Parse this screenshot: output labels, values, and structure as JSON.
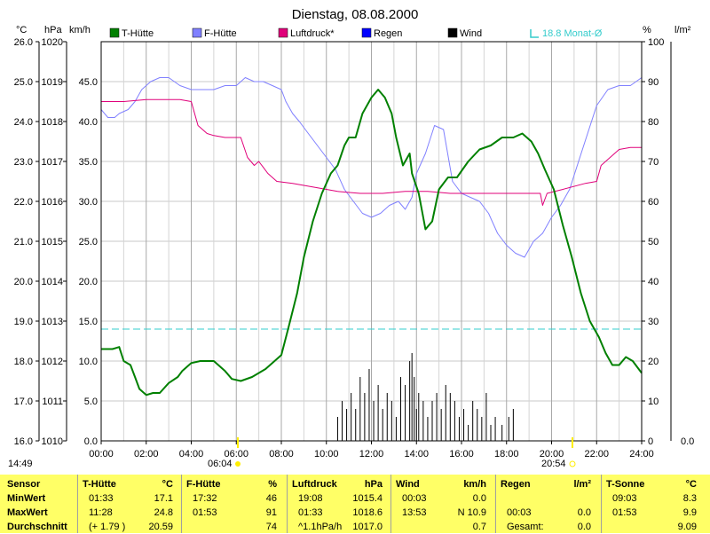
{
  "chart_data": {
    "type": "line",
    "title": "Dienstag, 08.08.2000",
    "time_label": "14:49",
    "x_ticks": [
      "00:00",
      "02:00",
      "04:00",
      "06:00",
      "08:00",
      "10:00",
      "12:00",
      "14:00",
      "16:00",
      "18:00",
      "20:00",
      "22:00",
      "24:00"
    ],
    "x_range": [
      0,
      24
    ],
    "sunrise": "06:04",
    "sunset": "20:54",
    "axes": {
      "temp": {
        "unit": "°C",
        "range": [
          16,
          26
        ],
        "ticks": [
          "26.0",
          "25.0",
          "24.0",
          "23.0",
          "22.0",
          "21.0",
          "20.0",
          "19.0",
          "18.0",
          "17.0",
          "16.0"
        ]
      },
      "pressure": {
        "unit": "hPa",
        "range": [
          1010,
          1020
        ],
        "ticks": [
          "1020",
          "1019",
          "1018",
          "1017",
          "1016",
          "1015",
          "1014",
          "1013",
          "1012",
          "1011",
          "1010"
        ]
      },
      "wind": {
        "unit": "km/h",
        "range": [
          0,
          50
        ],
        "ticks": [
          "45.0",
          "40.0",
          "35.0",
          "30.0",
          "25.0",
          "20.0",
          "15.0",
          "10.0",
          "5.0",
          "0.0"
        ]
      },
      "humidity": {
        "unit": "%",
        "range": [
          0,
          100
        ],
        "ticks": [
          "100",
          "90",
          "80",
          "70",
          "60",
          "50",
          "40",
          "30",
          "20",
          "10",
          "0"
        ]
      },
      "rain": {
        "unit": "l/m²",
        "ticks": [
          "0.0"
        ]
      }
    },
    "legend": [
      {
        "name": "T-Hütte",
        "color": "#008000"
      },
      {
        "name": "F-Hütte",
        "color": "#8080ff"
      },
      {
        "name": "Luftdruck*",
        "color": "#e0007a"
      },
      {
        "name": "Regen",
        "color": "#0000ff"
      },
      {
        "name": "Wind",
        "color": "#000000"
      },
      {
        "name": "18.8 Monat-Ø",
        "color": "#33cccc"
      }
    ],
    "monthly_avg_temp": 18.8,
    "series": [
      {
        "name": "T-Hütte",
        "axis": "temp",
        "x": [
          0,
          0.5,
          0.8,
          1.0,
          1.3,
          1.5,
          1.7,
          2.0,
          2.3,
          2.6,
          3.0,
          3.4,
          3.6,
          4.0,
          4.4,
          5.0,
          5.5,
          5.8,
          6.2,
          6.7,
          7.0,
          7.3,
          7.7,
          8.0,
          8.3,
          8.7,
          9.0,
          9.4,
          9.8,
          10.2,
          10.5,
          10.8,
          11.0,
          11.3,
          11.6,
          12.0,
          12.3,
          12.6,
          12.9,
          13.1,
          13.4,
          13.7,
          13.8,
          14.1,
          14.4,
          14.7,
          15.0,
          15.4,
          15.8,
          16.3,
          16.8,
          17.3,
          17.8,
          18.3,
          18.7,
          19.1,
          19.4,
          19.7,
          20.1,
          20.5,
          20.9,
          21.3,
          21.7,
          22.1,
          22.4,
          22.7,
          23.0,
          23.3,
          23.6,
          24.0
        ],
        "values": [
          18.3,
          18.3,
          18.35,
          18.0,
          17.9,
          17.6,
          17.3,
          17.15,
          17.2,
          17.2,
          17.45,
          17.6,
          17.75,
          17.95,
          18.0,
          18.0,
          17.75,
          17.55,
          17.5,
          17.6,
          17.7,
          17.8,
          18.0,
          18.15,
          18.8,
          19.7,
          20.6,
          21.5,
          22.2,
          22.7,
          22.9,
          23.4,
          23.6,
          23.6,
          24.2,
          24.6,
          24.8,
          24.6,
          24.2,
          23.6,
          22.9,
          23.2,
          22.7,
          22.2,
          21.3,
          21.5,
          22.3,
          22.6,
          22.6,
          23.0,
          23.3,
          23.4,
          23.6,
          23.6,
          23.7,
          23.5,
          23.2,
          22.8,
          22.3,
          21.4,
          20.6,
          19.7,
          19.0,
          18.6,
          18.2,
          17.9,
          17.9,
          18.1,
          18.0,
          17.7
        ]
      },
      {
        "name": "F-Hütte",
        "axis": "humidity",
        "x": [
          0,
          0.3,
          0.6,
          0.8,
          1.2,
          1.5,
          1.8,
          2.2,
          2.6,
          3.0,
          3.5,
          4.0,
          4.5,
          5.0,
          5.5,
          6.0,
          6.4,
          6.8,
          7.2,
          7.6,
          8.0,
          8.2,
          8.5,
          8.8,
          9.2,
          9.6,
          10.0,
          10.4,
          10.8,
          11.2,
          11.6,
          12.0,
          12.4,
          12.8,
          13.2,
          13.5,
          13.8,
          14.0,
          14.4,
          14.8,
          15.2,
          15.6,
          16.0,
          16.4,
          16.8,
          17.2,
          17.6,
          18.0,
          18.4,
          18.8,
          19.2,
          19.6,
          20.0,
          20.4,
          20.8,
          21.2,
          21.6,
          22.0,
          22.5,
          23.0,
          23.5,
          24.0
        ],
        "values": [
          83,
          81,
          81,
          82,
          83,
          85,
          88,
          90,
          91,
          91,
          89,
          88,
          88,
          88,
          89,
          89,
          91,
          90,
          90,
          89,
          88,
          85,
          82,
          80,
          77,
          74,
          71,
          68,
          63,
          60,
          57,
          56,
          57,
          59,
          60,
          58,
          61,
          67,
          72,
          79,
          78,
          65,
          62,
          61,
          60,
          57,
          52,
          49,
          47,
          46,
          50,
          52,
          56,
          59,
          63,
          70,
          77,
          84,
          88,
          89,
          89,
          91
        ]
      },
      {
        "name": "Luftdruck*",
        "axis": "pressure",
        "x": [
          0,
          1,
          2,
          3,
          3.5,
          4.0,
          4.3,
          4.7,
          5.0,
          5.5,
          6.0,
          6.2,
          6.5,
          6.8,
          7.0,
          7.2,
          7.4,
          7.8,
          8.5,
          9.5,
          10.5,
          11.5,
          12.5,
          13.5,
          14.5,
          15.5,
          16.5,
          17.5,
          18.5,
          19.5,
          19.6,
          19.8,
          20.5,
          21.5,
          22.0,
          22.2,
          22.5,
          23.0,
          23.5,
          24.0
        ],
        "values": [
          1018.5,
          1018.5,
          1018.55,
          1018.55,
          1018.55,
          1018.5,
          1017.9,
          1017.7,
          1017.65,
          1017.6,
          1017.6,
          1017.6,
          1017.1,
          1016.9,
          1017.0,
          1016.85,
          1016.7,
          1016.5,
          1016.45,
          1016.35,
          1016.25,
          1016.2,
          1016.2,
          1016.25,
          1016.25,
          1016.2,
          1016.2,
          1016.2,
          1016.2,
          1016.2,
          1015.9,
          1016.2,
          1016.3,
          1016.45,
          1016.5,
          1016.9,
          1017.05,
          1017.3,
          1017.35,
          1017.35
        ]
      },
      {
        "name": "Wind",
        "axis": "wind",
        "x": [
          10.5,
          10.7,
          10.9,
          11.1,
          11.3,
          11.5,
          11.7,
          11.9,
          12.1,
          12.3,
          12.5,
          12.7,
          12.9,
          13.1,
          13.3,
          13.5,
          13.7,
          13.8,
          13.9,
          14.0,
          14.1,
          14.3,
          14.5,
          14.7,
          14.9,
          15.1,
          15.3,
          15.5,
          15.7,
          15.9,
          16.1,
          16.3,
          16.5,
          16.7,
          16.9,
          17.1,
          17.3,
          17.5,
          17.8,
          18.1,
          18.3
        ],
        "values": [
          3,
          5,
          4,
          6,
          4,
          8,
          6,
          9,
          5,
          7,
          4,
          6,
          5,
          3,
          8,
          7,
          10,
          11,
          8,
          4,
          6,
          5,
          3,
          5,
          6,
          4,
          7,
          6,
          5,
          3,
          4,
          2,
          5,
          4,
          3,
          6,
          2,
          3,
          2,
          3,
          4
        ]
      }
    ]
  },
  "stats": {
    "headers": {
      "sensor": "Sensor",
      "min": "MinWert",
      "max": "MaxWert",
      "avg": "Durchschnitt"
    },
    "sections": [
      {
        "name": "T-Hütte",
        "unit": "°C",
        "min": {
          "time": "01:33",
          "value": "17.1"
        },
        "max": {
          "time": "11:28",
          "value": "24.8"
        },
        "avg": {
          "time": "(+ 1.79 )",
          "value": "20.59"
        }
      },
      {
        "name": "F-Hütte",
        "unit": "%",
        "min": {
          "time": "17:32",
          "value": "46"
        },
        "max": {
          "time": "01:53",
          "value": "91"
        },
        "avg": {
          "time": "",
          "value": "74"
        }
      },
      {
        "name": "Luftdruck",
        "unit": "hPa",
        "min": {
          "time": "19:08",
          "value": "1015.4"
        },
        "max": {
          "time": "01:33",
          "value": "1018.6"
        },
        "avg": {
          "time": "^1.1hPa/h",
          "value": "1017.0"
        }
      },
      {
        "name": "Wind",
        "unit": "km/h",
        "min": {
          "time": "00:03",
          "value": "0.0"
        },
        "max": {
          "time": "13:53",
          "value": "N 10.9"
        },
        "avg": {
          "time": "",
          "value": "0.7"
        }
      },
      {
        "name": "Regen",
        "unit": "l/m²",
        "min": {
          "time": "",
          "value": ""
        },
        "max": {
          "time": "00:03",
          "value": "0.0"
        },
        "avg": {
          "time": "Gesamt:",
          "value": "0.0"
        }
      },
      {
        "name": "T-Sonne",
        "unit": "°C",
        "min": {
          "time": "09:03",
          "value": "8.3"
        },
        "max": {
          "time": "01:53",
          "value": "9.9"
        },
        "avg": {
          "time": "",
          "value": "9.09"
        }
      }
    ]
  }
}
